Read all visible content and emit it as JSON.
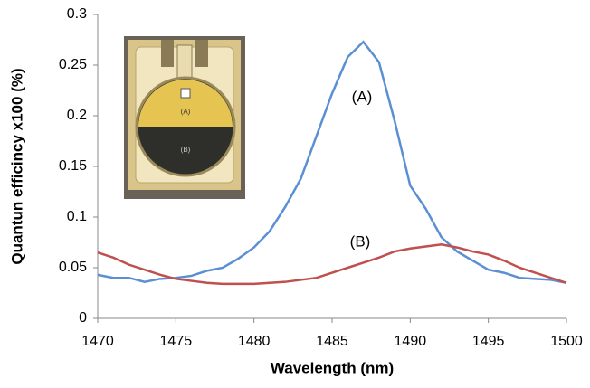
{
  "chart_data": {
    "type": "line",
    "xlabel": "Wavelength (nm)",
    "ylabel": "Quantun efficincy x100 (%)",
    "x": [
      1470,
      1471,
      1472,
      1473,
      1474,
      1475,
      1476,
      1477,
      1478,
      1479,
      1480,
      1481,
      1482,
      1483,
      1484,
      1485,
      1486,
      1487,
      1488,
      1489,
      1490,
      1491,
      1492,
      1493,
      1494,
      1495,
      1496,
      1497,
      1498,
      1499,
      1500
    ],
    "series": [
      {
        "name": "(A)",
        "color": "#5b8fd4",
        "values": [
          0.043,
          0.04,
          0.04,
          0.036,
          0.039,
          0.04,
          0.042,
          0.047,
          0.05,
          0.059,
          0.07,
          0.086,
          0.11,
          0.138,
          0.18,
          0.222,
          0.258,
          0.273,
          0.253,
          0.195,
          0.131,
          0.108,
          0.08,
          0.066,
          0.057,
          0.048,
          0.045,
          0.04,
          0.039,
          0.038,
          0.035
        ]
      },
      {
        "name": "(B)",
        "color": "#c0504d",
        "values": [
          0.065,
          0.06,
          0.053,
          0.048,
          0.043,
          0.039,
          0.037,
          0.035,
          0.034,
          0.034,
          0.034,
          0.035,
          0.036,
          0.038,
          0.04,
          0.045,
          0.05,
          0.055,
          0.06,
          0.066,
          0.069,
          0.071,
          0.073,
          0.07,
          0.066,
          0.063,
          0.057,
          0.05,
          0.045,
          0.04,
          0.035
        ]
      }
    ],
    "inset_labels": [
      "(A)",
      "(B)"
    ],
    "xlim": [
      1470,
      1500
    ],
    "xticks": [
      1470,
      1475,
      1480,
      1485,
      1490,
      1495,
      1500
    ],
    "ylim": [
      0,
      0.3
    ],
    "yticks": [
      0,
      0.05,
      0.1,
      0.15,
      0.2,
      0.25,
      0.3
    ],
    "grid": false
  }
}
